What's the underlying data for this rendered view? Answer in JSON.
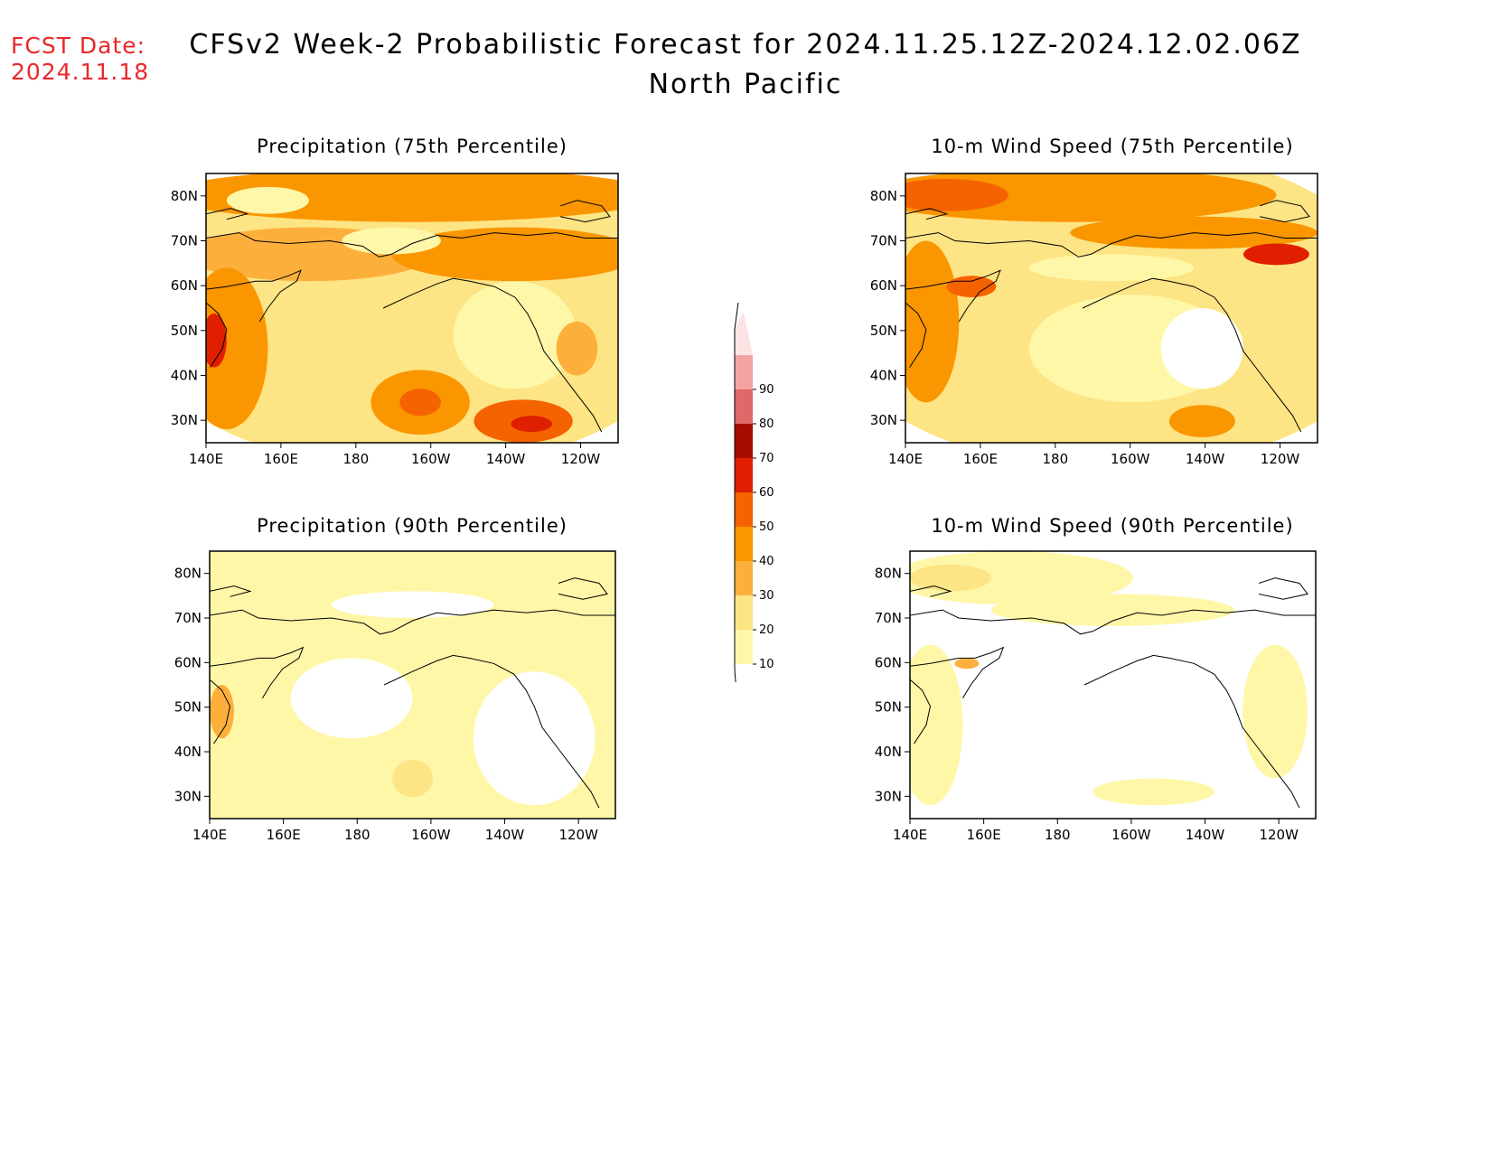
{
  "header": {
    "fcst_label": "FCST Date:",
    "fcst_date": "2024.11.18",
    "title": "CFSv2 Week-2 Probabilistic Forecast for 2024.11.25.12Z-2024.12.02.06Z",
    "subtitle": "North Pacific"
  },
  "panels": [
    {
      "id": "precip75",
      "title": "Precipitation (75th Percentile)"
    },
    {
      "id": "wind75",
      "title": "10-m Wind Speed (75th Percentile)"
    },
    {
      "id": "precip90",
      "title": "Precipitation (90th Percentile)"
    },
    {
      "id": "wind90",
      "title": "10-m Wind Speed (90th Percentile)"
    }
  ],
  "axes": {
    "lat_labels": [
      "80N",
      "70N",
      "60N",
      "50N",
      "40N",
      "30N"
    ],
    "lon_labels": [
      "140E",
      "160E",
      "180",
      "160W",
      "140W",
      "120W"
    ]
  },
  "colorbar": {
    "levels": [
      "10",
      "20",
      "30",
      "40",
      "50",
      "60",
      "70",
      "80",
      "90"
    ],
    "colors": [
      "#fff7a8",
      "#fde484",
      "#fcb03b",
      "#fa9600",
      "#f56200",
      "#df1f00",
      "#a80c00",
      "#e06868",
      "#f4a3a3",
      "#fde4e4"
    ]
  }
}
